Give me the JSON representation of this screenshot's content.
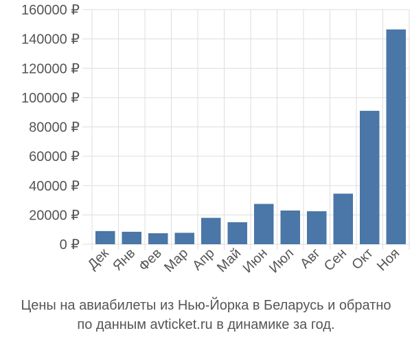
{
  "chart_data": {
    "type": "bar",
    "categories": [
      "Дек",
      "Янв",
      "Фев",
      "Мар",
      "Апр",
      "Май",
      "Июн",
      "Июл",
      "Авг",
      "Сен",
      "Окт",
      "Ноя"
    ],
    "values": [
      9000,
      8500,
      7500,
      7800,
      18000,
      15000,
      27500,
      23000,
      22500,
      34500,
      91000,
      146500
    ],
    "ylim": [
      0,
      160000
    ],
    "yticks": [
      0,
      20000,
      40000,
      60000,
      80000,
      100000,
      120000,
      140000,
      160000
    ],
    "ytick_labels": [
      "0 ₽",
      "20000 ₽",
      "40000 ₽",
      "60000 ₽",
      "80000 ₽",
      "100000 ₽",
      "120000 ₽",
      "140000 ₽",
      "160000 ₽"
    ],
    "grid": true,
    "bar_color": "#4a76a8",
    "grid_color": "#dddddd"
  },
  "caption": {
    "line1": "Цены на авиабилеты из Нью-Йорка в Беларусь и обратно",
    "line2": "по данным avticket.ru в динамике за год."
  }
}
